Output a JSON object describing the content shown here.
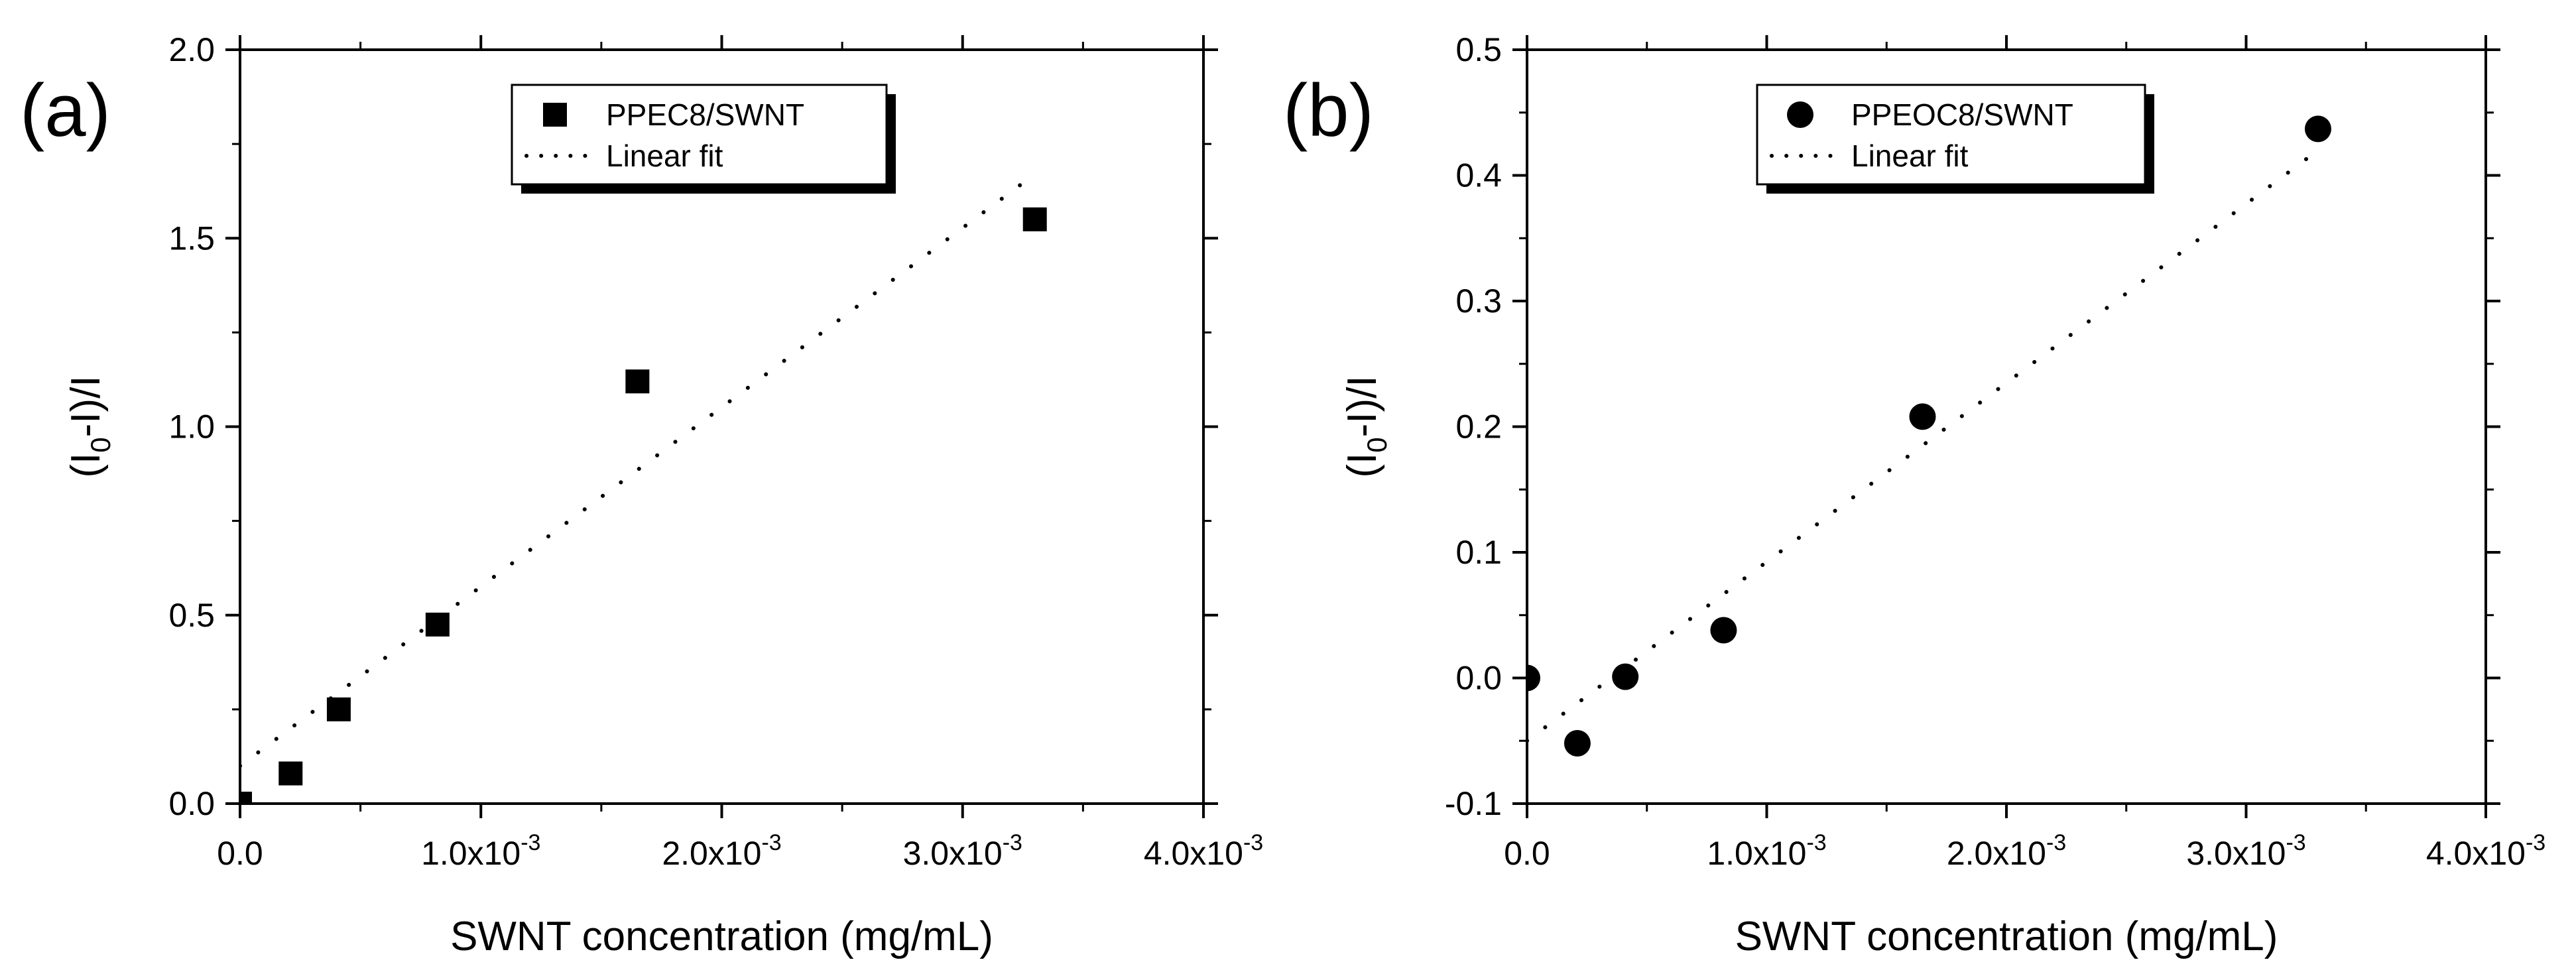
{
  "chart_data": [
    {
      "type": "scatter",
      "panel_label": "(a)",
      "xlabel": "SWNT concentration (mg/mL)",
      "ylabel_parts": [
        "(I",
        "0",
        "-I)/I"
      ],
      "xlim": [
        0,
        0.004
      ],
      "ylim": [
        0,
        2.0
      ],
      "x_ticks": [
        0,
        0.001,
        0.002,
        0.003,
        0.004
      ],
      "x_tick_labels": [
        {
          "mantissa": "0.0",
          "exp": ""
        },
        {
          "mantissa": "1.0x10",
          "exp": "-3"
        },
        {
          "mantissa": "2.0x10",
          "exp": "-3"
        },
        {
          "mantissa": "3.0x10",
          "exp": "-3"
        },
        {
          "mantissa": "4.0x10",
          "exp": "-3"
        }
      ],
      "y_ticks": [
        0,
        0.5,
        1.0,
        1.5,
        2.0
      ],
      "y_tick_labels": [
        "0.0",
        "0.5",
        "1.0",
        "1.5",
        "2.0"
      ],
      "series": [
        {
          "name": "PPEC8/SWNT",
          "marker": "square",
          "x": [
            0,
            0.00021,
            0.00041,
            0.00082,
            0.00165,
            0.0033
          ],
          "y": [
            0.0,
            0.08,
            0.25,
            0.475,
            1.12,
            1.55
          ]
        }
      ],
      "fit": {
        "name": "Linear fit",
        "style": "dotted",
        "x": [
          0,
          0.0033
        ],
        "y": [
          0.1,
          1.67
        ]
      },
      "legend": {
        "position": "top-center",
        "entries": [
          "PPEC8/SWNT",
          "Linear fit"
        ]
      }
    },
    {
      "type": "scatter",
      "panel_label": "(b)",
      "xlabel": "SWNT concentration (mg/mL)",
      "ylabel_parts": [
        "(I",
        "0",
        "-I)/I"
      ],
      "xlim": [
        0,
        0.004
      ],
      "ylim": [
        -0.1,
        0.5
      ],
      "x_ticks": [
        0,
        0.001,
        0.002,
        0.003,
        0.004
      ],
      "x_tick_labels": [
        {
          "mantissa": "0.0",
          "exp": ""
        },
        {
          "mantissa": "1.0x10",
          "exp": "-3"
        },
        {
          "mantissa": "2.0x10",
          "exp": "-3"
        },
        {
          "mantissa": "3.0x10",
          "exp": "-3"
        },
        {
          "mantissa": "4.0x10",
          "exp": "-3"
        }
      ],
      "y_ticks": [
        -0.1,
        0.0,
        0.1,
        0.2,
        0.3,
        0.4,
        0.5
      ],
      "y_tick_labels": [
        "-0.1",
        "0.0",
        "0.1",
        "0.2",
        "0.3",
        "0.4",
        "0.5"
      ],
      "series": [
        {
          "name": "PPEOC8/SWNT",
          "marker": "circle",
          "x": [
            0,
            0.00021,
            0.00041,
            0.00082,
            0.00165,
            0.0033
          ],
          "y": [
            0.0,
            -0.052,
            0.001,
            0.038,
            0.208,
            0.437
          ]
        }
      ],
      "fit": {
        "name": "Linear fit",
        "style": "dotted",
        "x": [
          0,
          0.0033
        ],
        "y": [
          -0.05,
          0.42
        ]
      },
      "legend": {
        "position": "top-center",
        "entries": [
          "PPEOC8/SWNT",
          "Linear fit"
        ]
      }
    }
  ]
}
